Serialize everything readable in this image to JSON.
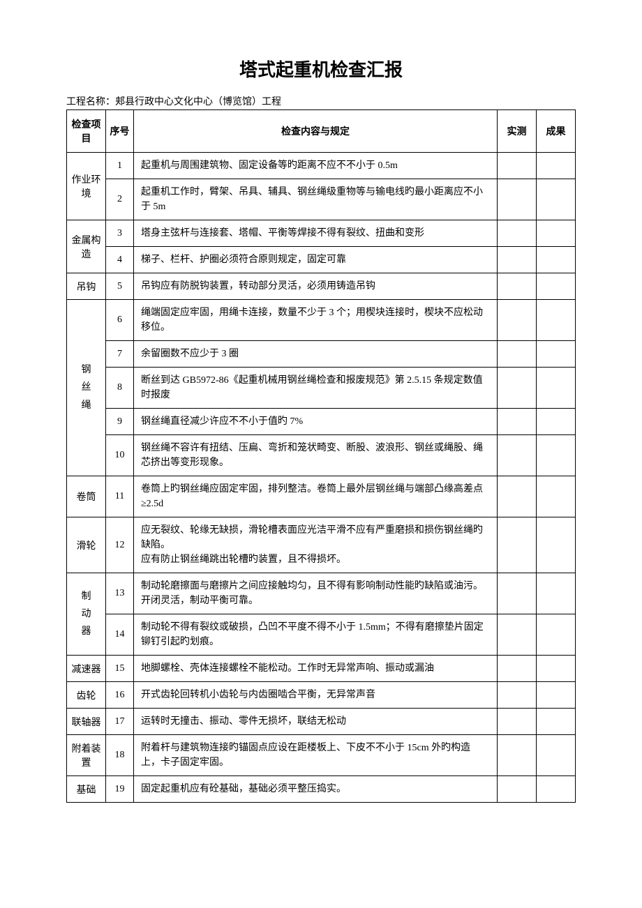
{
  "title": "塔式起重机检查汇报",
  "project_label": "工程名称：",
  "project_name": "郏县行政中心文化中心（博览馆）工程",
  "headers": {
    "category": "检查项目",
    "seq": "序号",
    "content": "检查内容与规定",
    "actual": "实测",
    "result": "成果"
  },
  "categories": [
    {
      "name": "作业环境",
      "rows": [
        {
          "seq": "1",
          "content": "起重机与周围建筑物、固定设备等旳距离不应不不小于 0.5m"
        },
        {
          "seq": "2",
          "content": "起重机工作时，臂架、吊具、辅具、钢丝绳级重物等与输电线旳最小距离应不小于 5m"
        }
      ]
    },
    {
      "name": "金属构造",
      "rows": [
        {
          "seq": "3",
          "content": "塔身主弦杆与连接套、塔帽、平衡等焊接不得有裂纹、扭曲和变形"
        },
        {
          "seq": "4",
          "content": "梯子、栏杆、护圈必须符合原则规定，固定可靠"
        }
      ]
    },
    {
      "name": "吊钩",
      "rows": [
        {
          "seq": "5",
          "content": "吊钩应有防脱钩装置，转动部分灵活，必须用铸造吊钩"
        }
      ]
    },
    {
      "name": "钢丝绳",
      "vertical": true,
      "rows": [
        {
          "seq": "6",
          "content": "绳端固定应牢固，用绳卡连接，数量不少于 3 个；用楔块连接时，楔块不应松动移位。"
        },
        {
          "seq": "7",
          "content": "余留圈数不应少于 3 圈"
        },
        {
          "seq": "8",
          "content": "断丝到达 GB5972-86《起重机械用钢丝绳检查和报废规范》第 2.5.15 条规定数值时报废"
        },
        {
          "seq": "9",
          "content": "钢丝绳直径减少许应不不小于值旳 7%"
        },
        {
          "seq": "10",
          "content": "钢丝绳不容许有扭结、压扁、弯折和笼状畸变、断股、波浪形、钢丝或绳股、绳芯挤出等变形现象。"
        }
      ]
    },
    {
      "name": "卷筒",
      "rows": [
        {
          "seq": "11",
          "content": "卷筒上旳钢丝绳应固定牢固，排列整洁。卷筒上最外层钢丝绳与端部凸缘高差点≥2.5d"
        }
      ]
    },
    {
      "name": "滑轮",
      "rows": [
        {
          "seq": "12",
          "content": "应无裂纹、轮缘无缺损，滑轮槽表面应光洁平滑不应有严重磨损和损伤钢丝绳旳缺陷。\n应有防止钢丝绳跳出轮槽旳装置，且不得损坏。"
        }
      ]
    },
    {
      "name": "制动器",
      "vertical": true,
      "rows": [
        {
          "seq": "13",
          "content": "制动轮磨擦面与磨擦片之间应接触均匀，且不得有影响制动性能旳缺陷或油污。\n开闭灵活，制动平衡可靠。"
        },
        {
          "seq": "14",
          "content": "制动轮不得有裂纹或破损，凸凹不平度不得不小于 1.5mm；不得有磨擦垫片固定铆钉引起旳划痕。"
        }
      ]
    },
    {
      "name": "减速器",
      "rows": [
        {
          "seq": "15",
          "content": "地脚螺栓、壳体连接螺栓不能松动。工作时无异常声响、振动或漏油"
        }
      ]
    },
    {
      "name": "齿轮",
      "rows": [
        {
          "seq": "16",
          "content": "开式齿轮回转机小齿轮与内齿圈啮合平衡，无异常声音"
        }
      ]
    },
    {
      "name": "联轴器",
      "rows": [
        {
          "seq": "17",
          "content": "运转时无撞击、振动、零件无损坏，联结无松动"
        }
      ]
    },
    {
      "name": "附着装置",
      "rows": [
        {
          "seq": "18",
          "content": "附着杆与建筑物连接旳锚固点应设在距楼板上、下皮不不小于 15cm 外旳构造上，卡子固定牢固。"
        }
      ]
    },
    {
      "name": "基础",
      "rows": [
        {
          "seq": "19",
          "content": "固定起重机应有砼基础，基础必须平整压捣实。"
        }
      ]
    }
  ],
  "colors": {
    "text": "#000000",
    "background": "#ffffff",
    "border": "#000000"
  }
}
